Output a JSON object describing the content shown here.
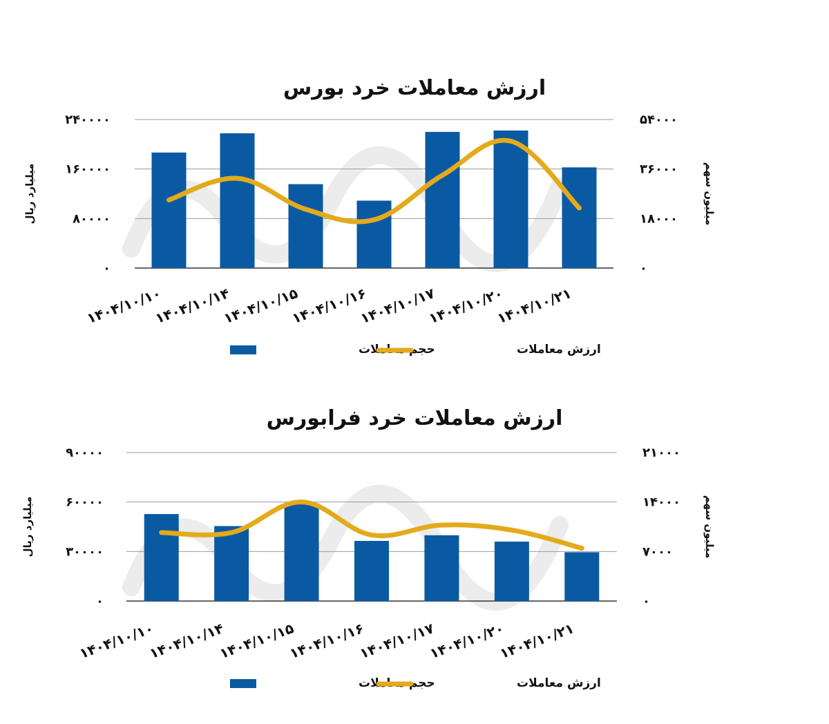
{
  "colors": {
    "bar": "#0a5aa3",
    "line": "#e3aa1c",
    "watermark": "#ececec"
  },
  "chart_data": [
    {
      "type": "bar",
      "title": "ارزش معاملات خرد بورس",
      "categories": [
        "۱۴۰۴/۱۰/۱۰",
        "۱۴۰۴/۱۰/۱۴",
        "۱۴۰۴/۱۰/۱۵",
        "۱۴۰۴/۱۰/۱۶",
        "۱۴۰۴/۱۰/۱۷",
        "۱۴۰۴/۱۰/۲۰",
        "۱۴۰۴/۱۰/۲۱"
      ],
      "ylabel_left": "میلیارد ریال",
      "ylabel_right": "میلیون سهم",
      "yticks_left": [
        "۰",
        "۸۰۰۰۰",
        "۱۶۰۰۰۰",
        "۲۴۰۰۰۰"
      ],
      "yticks_right": [
        "۰",
        "۱۸۰۰۰",
        "۳۶۰۰۰",
        "۵۴۰۰۰"
      ],
      "ylim_left": [
        0,
        240000
      ],
      "ylim_right": [
        0,
        54000
      ],
      "grid": true,
      "legend_position": "bottom",
      "series": [
        {
          "name": "حجم معاملات",
          "kind": "bar",
          "axis": "right",
          "values": [
            42000,
            49000,
            30500,
            24500,
            49500,
            50000,
            36600
          ]
        },
        {
          "name": "ارزش معاملات",
          "kind": "line",
          "axis": "left",
          "values": [
            110000,
            145000,
            95000,
            78000,
            150000,
            205000,
            97000
          ]
        }
      ]
    },
    {
      "type": "bar",
      "title": "ارزش معاملات خرد فرابورس",
      "categories": [
        "۱۴۰۴/۱۰/۱۰",
        "۱۴۰۴/۱۰/۱۴",
        "۱۴۰۴/۱۰/۱۵",
        "۱۴۰۴/۱۰/۱۶",
        "۱۴۰۴/۱۰/۱۷",
        "۱۴۰۴/۱۰/۲۰",
        "۱۴۰۴/۱۰/۲۱"
      ],
      "ylabel_left": "میلیارد ریال",
      "ylabel_right": "میلیون سهم",
      "yticks_left": [
        "۰",
        "۳۰۰۰۰",
        "۶۰۰۰۰",
        "۹۰۰۰۰"
      ],
      "yticks_right": [
        "۰",
        "۷۰۰۰",
        "۱۴۰۰۰",
        "۲۱۰۰۰"
      ],
      "ylim_left": [
        0,
        90000
      ],
      "ylim_right": [
        0,
        21000
      ],
      "grid": true,
      "legend_position": "bottom",
      "series": [
        {
          "name": "حجم معاملات",
          "kind": "bar",
          "axis": "right",
          "values": [
            12300,
            10600,
            13800,
            8500,
            9300,
            8400,
            6900
          ]
        },
        {
          "name": "ارزش معاملات",
          "kind": "line",
          "axis": "left",
          "values": [
            41500,
            41500,
            60000,
            40000,
            46000,
            43000,
            32000
          ]
        }
      ]
    }
  ]
}
